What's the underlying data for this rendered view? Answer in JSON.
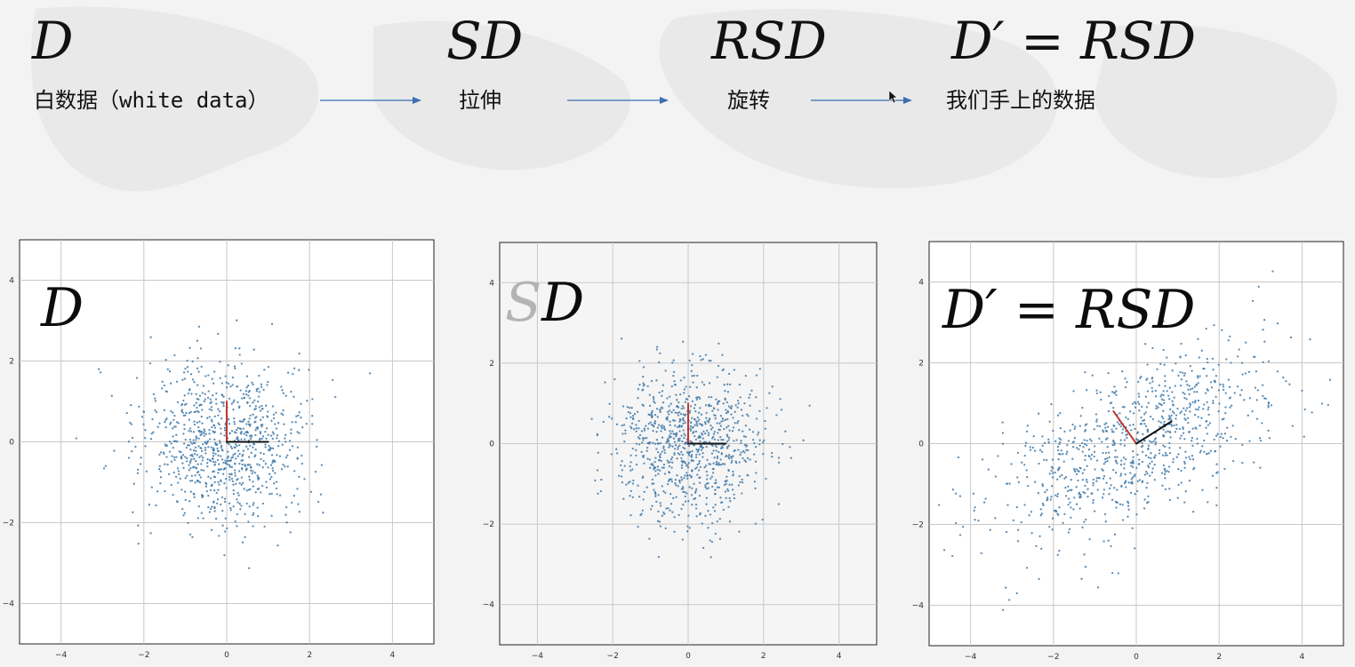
{
  "header": {
    "formulas": [
      "D",
      "SD",
      "RSD",
      "D′ = RSD"
    ],
    "captions": [
      "白数据（white data）",
      "拉伸",
      "旋转",
      "我们手上的数据"
    ]
  },
  "colors": {
    "arrow": "#3a6fb0",
    "point": "#3f79a8",
    "grid": "#c8c8c8",
    "frame": "#222222",
    "red_vector": "#c0392b",
    "black_vector": "#111111"
  },
  "panels": {
    "p1": {
      "label": "D"
    },
    "p2": {
      "label_ghost": "S",
      "label_main": "D"
    },
    "p3": {
      "label": "D′ = RSD"
    }
  },
  "chart_data": [
    {
      "type": "scatter",
      "title": "D",
      "xlim": [
        -5,
        5
      ],
      "ylim": [
        -5,
        5
      ],
      "xticks": [
        -4,
        -2,
        0,
        2,
        4
      ],
      "yticks": [
        -4,
        -2,
        0,
        2,
        4
      ],
      "grid": true,
      "points": {
        "n": 900,
        "mean": [
          0,
          0
        ],
        "std": [
          1,
          1
        ],
        "rotation_deg": 0
      },
      "vectors": [
        {
          "color": "red",
          "from": [
            0,
            0
          ],
          "to": [
            0,
            1
          ]
        },
        {
          "color": "black",
          "from": [
            0,
            0
          ],
          "to": [
            1,
            0
          ]
        }
      ]
    },
    {
      "type": "scatter",
      "title": "SD",
      "xlim": [
        -5,
        5
      ],
      "ylim": [
        -5,
        5
      ],
      "xticks": [
        -4,
        -2,
        0,
        2,
        4
      ],
      "yticks": [
        -4,
        -2,
        0,
        2,
        4
      ],
      "grid": true,
      "points": {
        "n": 900,
        "mean": [
          0,
          0
        ],
        "std": [
          1,
          1
        ],
        "rotation_deg": 0
      },
      "vectors": [
        {
          "color": "red",
          "from": [
            0,
            0
          ],
          "to": [
            0,
            1
          ]
        },
        {
          "color": "black",
          "from": [
            0,
            0
          ],
          "to": [
            1,
            0
          ]
        }
      ]
    },
    {
      "type": "scatter",
      "title": "D′ = RSD",
      "xlim": [
        -5,
        5
      ],
      "ylim": [
        -5,
        5
      ],
      "xticks": [
        -4,
        -2,
        0,
        2,
        4
      ],
      "yticks": [
        -4,
        -2,
        0,
        2,
        4
      ],
      "grid": true,
      "points": {
        "n": 900,
        "mean": [
          0,
          0
        ],
        "std": [
          1.9,
          0.85
        ],
        "rotation_deg": 30
      },
      "vectors": [
        {
          "color": "red",
          "from": [
            0,
            0
          ],
          "to": [
            -0.55,
            0.8
          ]
        },
        {
          "color": "black",
          "from": [
            0,
            0
          ],
          "to": [
            0.85,
            0.55
          ]
        }
      ]
    }
  ]
}
